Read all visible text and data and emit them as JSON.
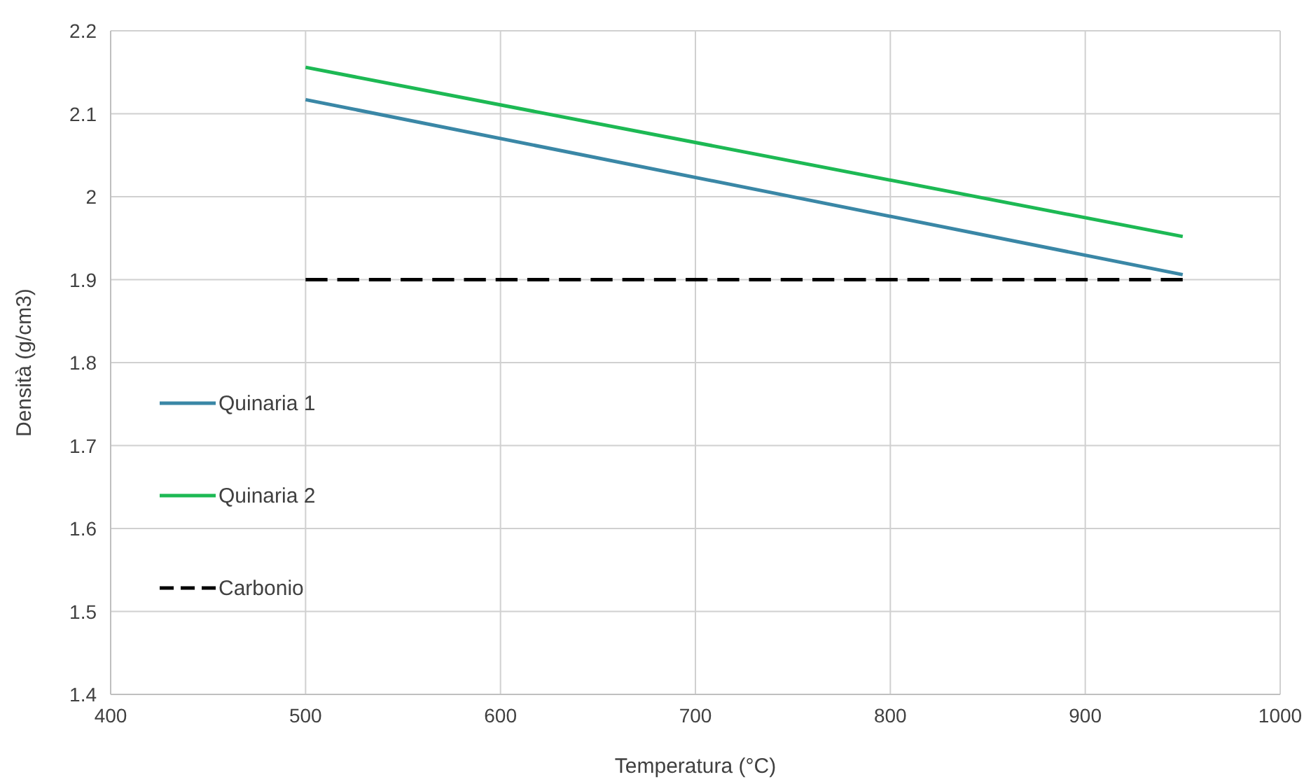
{
  "chart_data": {
    "type": "line",
    "xlabel": "Temperatura (°C)",
    "ylabel": "Densità (g/cm3)",
    "xlim": [
      400,
      1000
    ],
    "xticks": [
      400,
      500,
      600,
      700,
      800,
      900,
      1000
    ],
    "ylim": [
      1.4,
      2.2
    ],
    "yticks": [
      1.4,
      1.5,
      1.6,
      1.7,
      1.8,
      1.9,
      2,
      2.1,
      2.2
    ],
    "grid": true,
    "legend": "left",
    "marker": "none",
    "x": [
      500,
      950
    ],
    "series": [
      {
        "name": "Quinaria 1",
        "color": "#3a87a6",
        "values": [
          2.117,
          1.906
        ],
        "line_style": "solid"
      },
      {
        "name": "Quinaria 2",
        "color": "#1db954",
        "values": [
          2.156,
          1.952
        ],
        "line_style": "solid"
      },
      {
        "name": "Carbonio",
        "color": "#000000",
        "values": [
          1.9,
          1.9
        ],
        "line_style": "dashed"
      }
    ]
  }
}
